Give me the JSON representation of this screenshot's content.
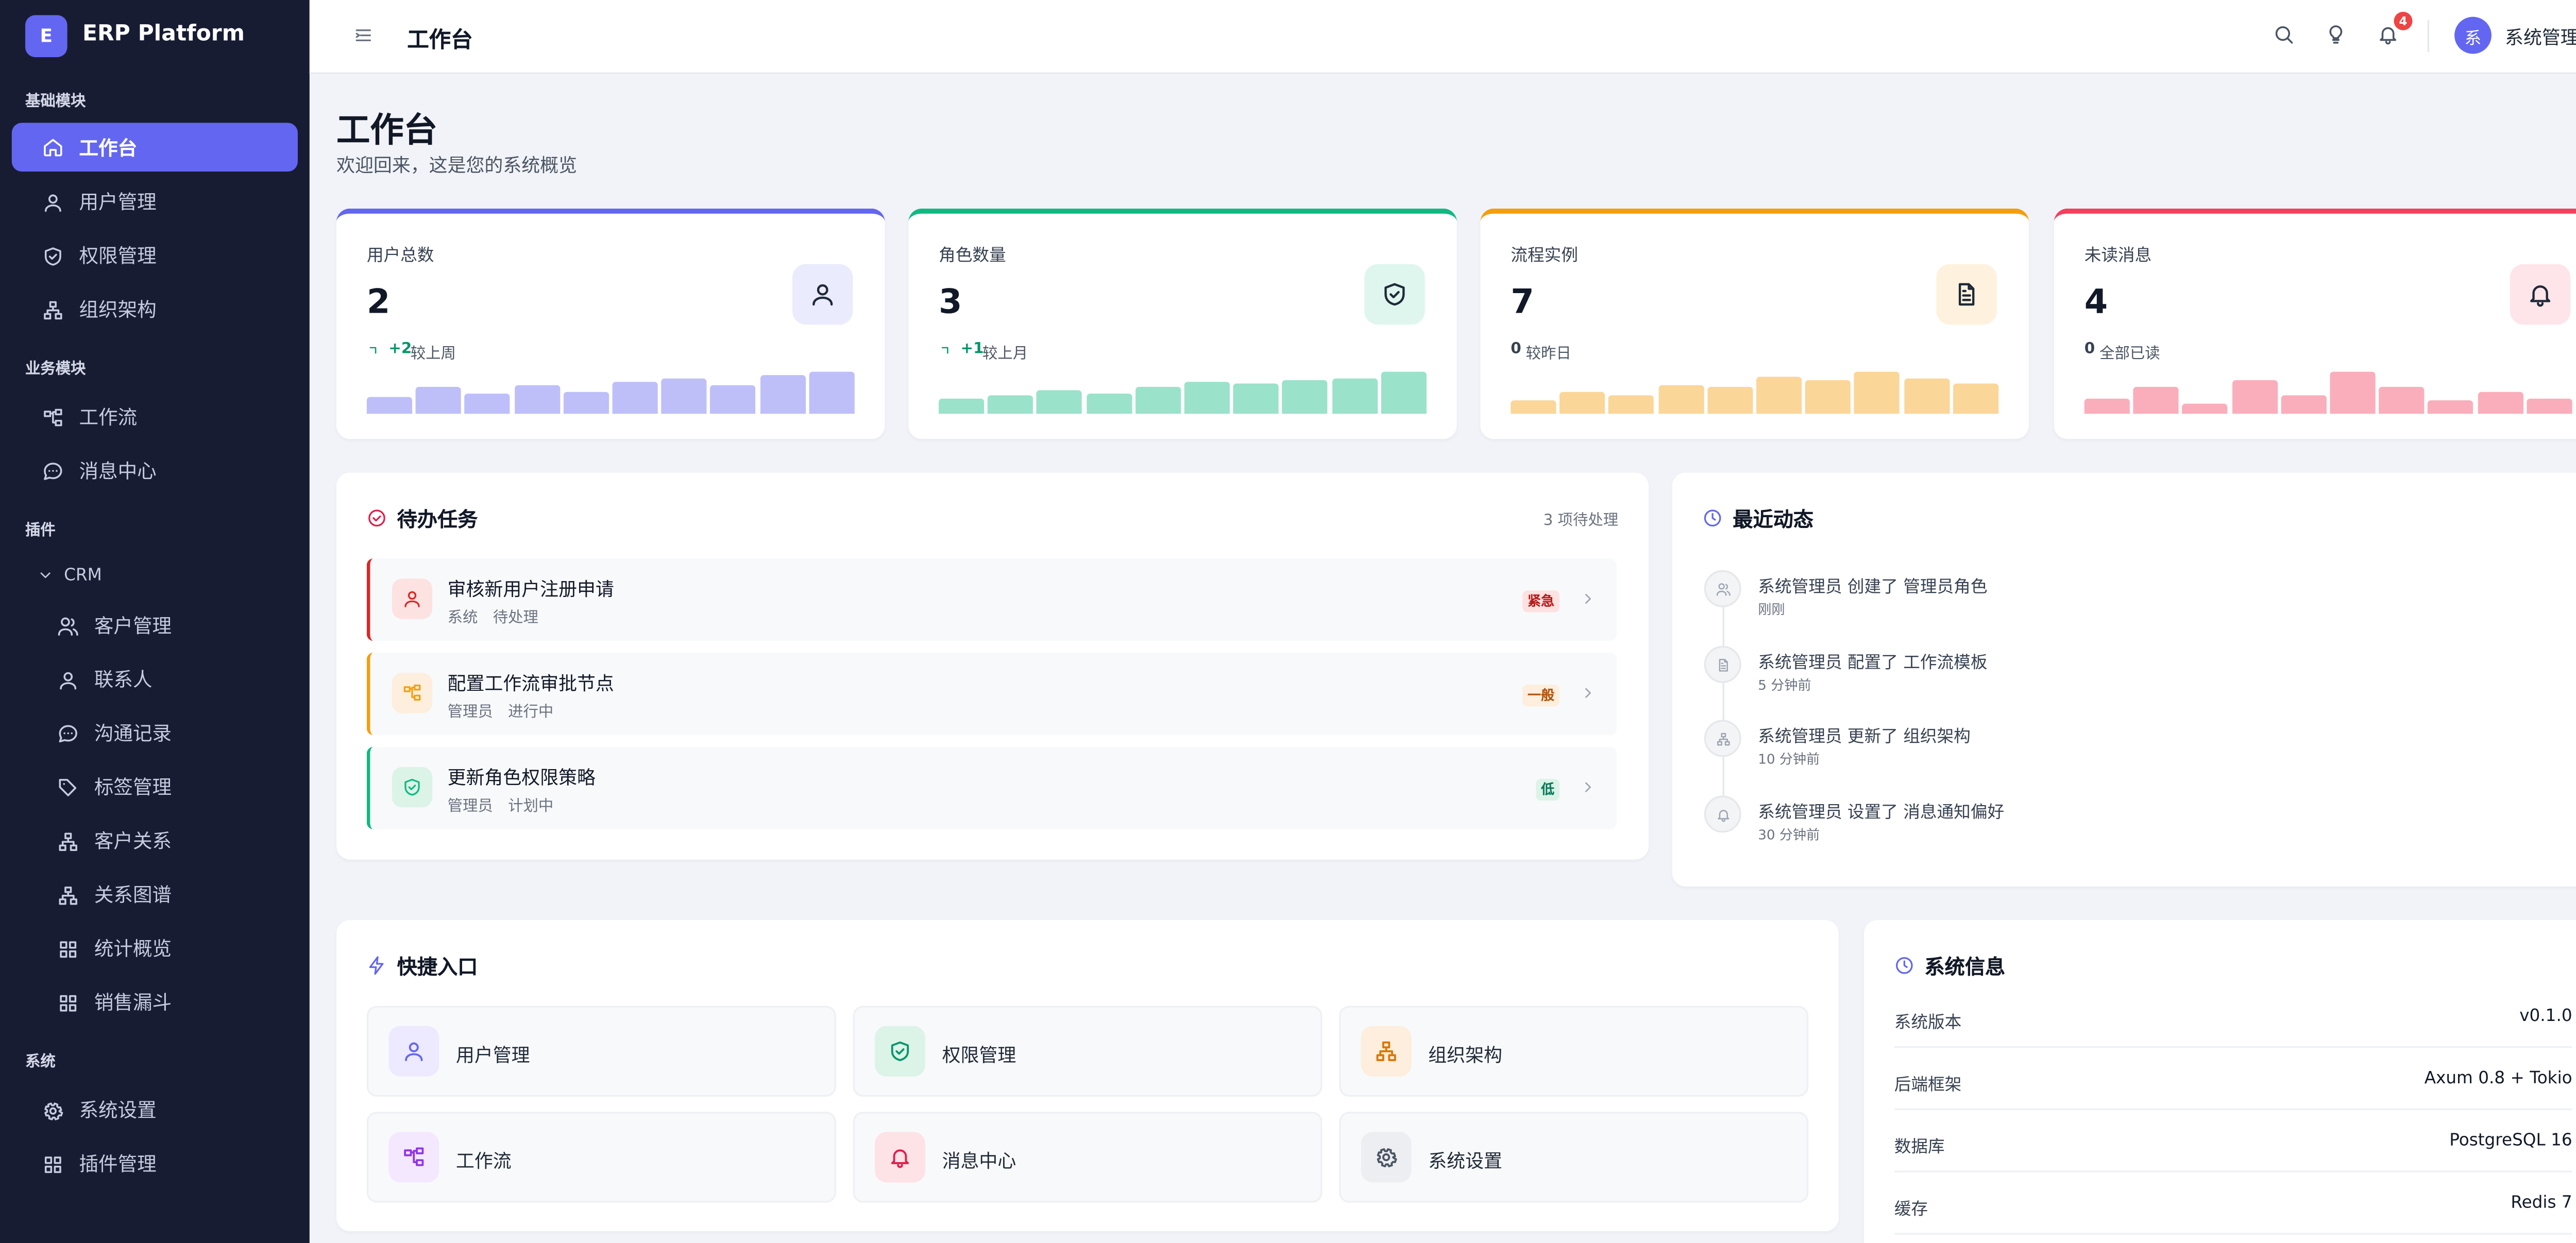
{
  "sidebar": {
    "brand_icon": "E",
    "brand": "ERP Platform",
    "sections": [
      {
        "title": "基础模块",
        "items": [
          "工作台",
          "用户管理",
          "权限管理",
          "组织架构"
        ]
      },
      {
        "title": "业务模块",
        "items": [
          "工作流",
          "消息中心"
        ]
      },
      {
        "title": "插件",
        "group": "CRM",
        "items": [
          "客户管理",
          "联系人",
          "沟通记录",
          "标签管理",
          "客户关系",
          "关系图谱",
          "统计概览",
          "销售漏斗"
        ]
      },
      {
        "title": "系统",
        "items": [
          "系统设置",
          "插件管理"
        ]
      }
    ]
  },
  "header": {
    "title": "工作台",
    "badge": 4,
    "avatar": "系",
    "user": "系统管理员"
  },
  "page": {
    "title": "工作台",
    "subtitle": "欢迎回来，这是您的系统概览"
  },
  "stats": [
    {
      "label": "用户总数",
      "value": 2,
      "trend": "+2",
      "trend_text": "较上周",
      "color": "#6366f1",
      "spark": [
        10,
        16,
        12,
        17,
        13,
        19,
        21,
        17,
        23,
        25
      ]
    },
    {
      "label": "角色数量",
      "value": 3,
      "trend": "+1",
      "trend_text": "较上月",
      "color": "#10b981",
      "spark": [
        9,
        11,
        14,
        12,
        16,
        19,
        18,
        20,
        21,
        25
      ]
    },
    {
      "label": "流程实例",
      "value": 7,
      "trend": "0",
      "trend_text": "较昨日",
      "color": "#f59e0b",
      "spark": [
        8,
        13,
        11,
        17,
        16,
        22,
        20,
        25,
        21,
        18
      ]
    },
    {
      "label": "未读消息",
      "value": 4,
      "trend": "0",
      "trend_text": "全部已读",
      "color": "#f43f5e",
      "spark": [
        9,
        16,
        6,
        20,
        11,
        25,
        16,
        8,
        13,
        9
      ]
    }
  ],
  "tasks": {
    "title": "待办任务",
    "count": "3 项待处理",
    "items": [
      {
        "title": "审核新用户注册申请",
        "source": "系统",
        "status": "待处理",
        "priority": "紧急"
      },
      {
        "title": "配置工作流审批节点",
        "source": "管理员",
        "status": "进行中",
        "priority": "一般"
      },
      {
        "title": "更新角色权限策略",
        "source": "管理员",
        "status": "计划中",
        "priority": "低"
      }
    ]
  },
  "activity": {
    "title": "最近动态",
    "items": [
      {
        "text": "系统管理员 创建了 管理员角色",
        "time": "刚刚"
      },
      {
        "text": "系统管理员 配置了 工作流模板",
        "time": "5 分钟前"
      },
      {
        "text": "系统管理员 更新了 组织架构",
        "time": "10 分钟前"
      },
      {
        "text": "系统管理员 设置了 消息通知偏好",
        "time": "30 分钟前"
      }
    ]
  },
  "quick": {
    "title": "快捷入口",
    "items": [
      "用户管理",
      "权限管理",
      "组织架构",
      "工作流",
      "消息中心",
      "系统设置"
    ]
  },
  "system": {
    "title": "系统信息",
    "rows": [
      [
        "系统版本",
        "v0.1.0"
      ],
      [
        "后端框架",
        "Axum 0.8 + Tokio"
      ],
      [
        "数据库",
        "PostgreSQL 16"
      ],
      [
        "缓存",
        "Redis 7"
      ]
    ]
  }
}
